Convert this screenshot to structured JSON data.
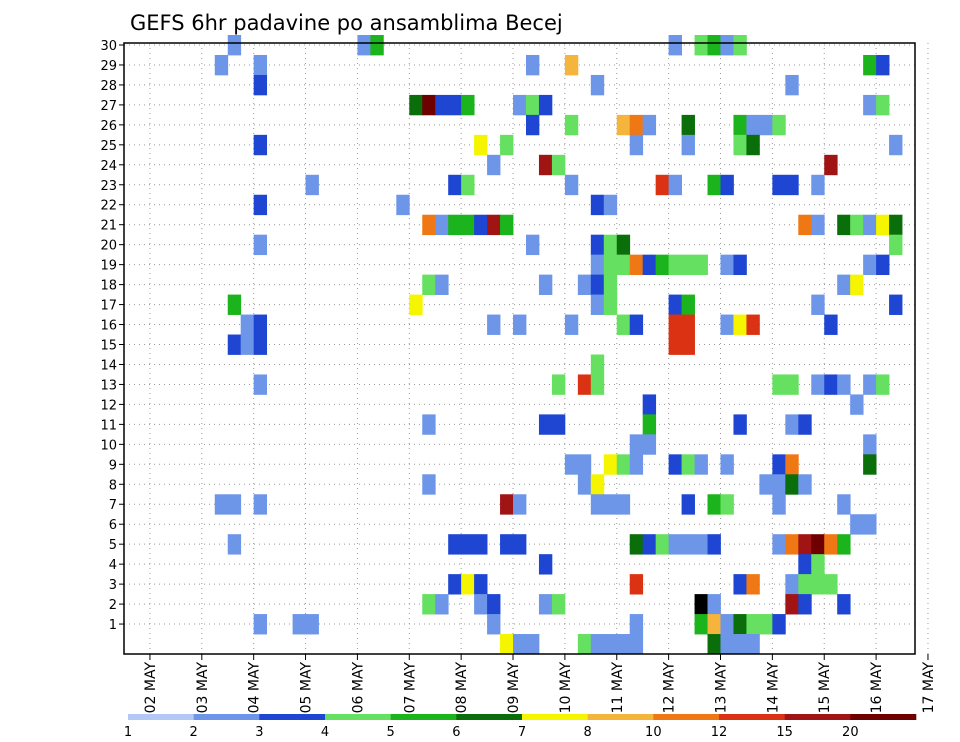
{
  "chart_data": {
    "type": "heatmap",
    "title": "GEFS 6hr padavine po ansamblima Becej",
    "y_ticks": [
      "1",
      "2",
      "3",
      "4",
      "5",
      "6",
      "7",
      "8",
      "9",
      "10",
      "11",
      "12",
      "13",
      "14",
      "15",
      "16",
      "17",
      "18",
      "19",
      "20",
      "21",
      "22",
      "23",
      "24",
      "25",
      "26",
      "27",
      "28",
      "29",
      "30"
    ],
    "y_range": [
      0,
      30
    ],
    "x_ticks": [
      "02 MAY",
      "03 MAY",
      "04 MAY",
      "05 MAY",
      "06 MAY",
      "07 MAY",
      "08 MAY",
      "09 MAY",
      "10 MAY",
      "11 MAY",
      "12 MAY",
      "13 MAY",
      "14 MAY",
      "15 MAY",
      "16 MAY",
      "17 MAY"
    ],
    "x_time_steps": 61,
    "step_hours": 6,
    "grid": true,
    "colorbar": {
      "placement": "bottom",
      "labels": [
        "1",
        "2",
        "3",
        "4",
        "5",
        "6",
        "7",
        "8",
        "10",
        "12",
        "15",
        "20"
      ],
      "colors": [
        "#b4c8f5",
        "#6e96e8",
        "#1e46d2",
        "#66e060",
        "#1cb41c",
        "#0a6e0a",
        "#f5f500",
        "#f5b43c",
        "#f07814",
        "#dc3214",
        "#a01414",
        "#6e0000"
      ]
    },
    "cells": [
      [
        8,
        30,
        1
      ],
      [
        18,
        30,
        1
      ],
      [
        19,
        30,
        4
      ],
      [
        42,
        30,
        1
      ],
      [
        44,
        30,
        3
      ],
      [
        45,
        30,
        4
      ],
      [
        46,
        30,
        1
      ],
      [
        47,
        30,
        3
      ],
      [
        7,
        29,
        1
      ],
      [
        10,
        29,
        1
      ],
      [
        31,
        29,
        1
      ],
      [
        34,
        29,
        7
      ],
      [
        57,
        29,
        4
      ],
      [
        58,
        29,
        2
      ],
      [
        10,
        28,
        2
      ],
      [
        36,
        28,
        1
      ],
      [
        51,
        28,
        1
      ],
      [
        22,
        27,
        5
      ],
      [
        23,
        27,
        11
      ],
      [
        24,
        27,
        2
      ],
      [
        25,
        27,
        2
      ],
      [
        26,
        27,
        4
      ],
      [
        30,
        27,
        1
      ],
      [
        31,
        27,
        3
      ],
      [
        32,
        27,
        2
      ],
      [
        57,
        27,
        1
      ],
      [
        58,
        27,
        3
      ],
      [
        31,
        26,
        2
      ],
      [
        34,
        26,
        3
      ],
      [
        38,
        26,
        7
      ],
      [
        39,
        26,
        8
      ],
      [
        40,
        26,
        1
      ],
      [
        43,
        26,
        5
      ],
      [
        47,
        26,
        4
      ],
      [
        48,
        26,
        1
      ],
      [
        49,
        26,
        1
      ],
      [
        50,
        26,
        3
      ],
      [
        10,
        25,
        2
      ],
      [
        27,
        25,
        6
      ],
      [
        29,
        25,
        3
      ],
      [
        39,
        25,
        1
      ],
      [
        43,
        25,
        1
      ],
      [
        47,
        25,
        3
      ],
      [
        48,
        25,
        5
      ],
      [
        59,
        25,
        1
      ],
      [
        28,
        24,
        1
      ],
      [
        32,
        24,
        10
      ],
      [
        33,
        24,
        3
      ],
      [
        54,
        24,
        10
      ],
      [
        14,
        23,
        1
      ],
      [
        25,
        23,
        2
      ],
      [
        26,
        23,
        3
      ],
      [
        34,
        23,
        1
      ],
      [
        41,
        23,
        9
      ],
      [
        42,
        23,
        1
      ],
      [
        45,
        23,
        4
      ],
      [
        46,
        23,
        2
      ],
      [
        50,
        23,
        2
      ],
      [
        51,
        23,
        2
      ],
      [
        53,
        23,
        1
      ],
      [
        10,
        22,
        2
      ],
      [
        21,
        22,
        1
      ],
      [
        36,
        22,
        2
      ],
      [
        37,
        22,
        1
      ],
      [
        23,
        21,
        8
      ],
      [
        24,
        21,
        1
      ],
      [
        25,
        21,
        4
      ],
      [
        26,
        21,
        4
      ],
      [
        27,
        21,
        2
      ],
      [
        28,
        21,
        10
      ],
      [
        29,
        21,
        4
      ],
      [
        52,
        21,
        8
      ],
      [
        53,
        21,
        1
      ],
      [
        55,
        21,
        5
      ],
      [
        56,
        21,
        3
      ],
      [
        57,
        21,
        1
      ],
      [
        58,
        21,
        6
      ],
      [
        59,
        21,
        5
      ],
      [
        10,
        20,
        1
      ],
      [
        31,
        20,
        1
      ],
      [
        36,
        20,
        2
      ],
      [
        37,
        20,
        3
      ],
      [
        38,
        20,
        5
      ],
      [
        59,
        20,
        3
      ],
      [
        36,
        19,
        1
      ],
      [
        37,
        19,
        3
      ],
      [
        38,
        19,
        3
      ],
      [
        39,
        19,
        8
      ],
      [
        40,
        19,
        2
      ],
      [
        41,
        19,
        4
      ],
      [
        42,
        19,
        3
      ],
      [
        43,
        19,
        3
      ],
      [
        44,
        19,
        3
      ],
      [
        46,
        19,
        1
      ],
      [
        47,
        19,
        2
      ],
      [
        57,
        19,
        1
      ],
      [
        58,
        19,
        2
      ],
      [
        23,
        18,
        3
      ],
      [
        24,
        18,
        1
      ],
      [
        32,
        18,
        1
      ],
      [
        35,
        18,
        1
      ],
      [
        36,
        18,
        2
      ],
      [
        37,
        18,
        3
      ],
      [
        55,
        18,
        1
      ],
      [
        56,
        18,
        6
      ],
      [
        8,
        17,
        4
      ],
      [
        22,
        17,
        6
      ],
      [
        36,
        17,
        1
      ],
      [
        37,
        17,
        3
      ],
      [
        42,
        17,
        2
      ],
      [
        43,
        17,
        4
      ],
      [
        53,
        17,
        1
      ],
      [
        59,
        17,
        2
      ],
      [
        9,
        16,
        1
      ],
      [
        10,
        16,
        2
      ],
      [
        28,
        16,
        1
      ],
      [
        30,
        16,
        1
      ],
      [
        34,
        16,
        1
      ],
      [
        38,
        16,
        3
      ],
      [
        39,
        16,
        2
      ],
      [
        42,
        16,
        9
      ],
      [
        43,
        16,
        9
      ],
      [
        46,
        16,
        1
      ],
      [
        47,
        16,
        6
      ],
      [
        48,
        16,
        9
      ],
      [
        54,
        16,
        2
      ],
      [
        8,
        15,
        2
      ],
      [
        9,
        15,
        1
      ],
      [
        10,
        15,
        2
      ],
      [
        42,
        15,
        9
      ],
      [
        43,
        15,
        9
      ],
      [
        36,
        14,
        3
      ],
      [
        10,
        13,
        1
      ],
      [
        33,
        13,
        3
      ],
      [
        35,
        13,
        9
      ],
      [
        36,
        13,
        3
      ],
      [
        50,
        13,
        3
      ],
      [
        51,
        13,
        3
      ],
      [
        53,
        13,
        1
      ],
      [
        54,
        13,
        2
      ],
      [
        55,
        13,
        1
      ],
      [
        57,
        13,
        1
      ],
      [
        58,
        13,
        3
      ],
      [
        40,
        12,
        2
      ],
      [
        56,
        12,
        1
      ],
      [
        23,
        11,
        1
      ],
      [
        32,
        11,
        2
      ],
      [
        33,
        11,
        2
      ],
      [
        40,
        11,
        4
      ],
      [
        47,
        11,
        2
      ],
      [
        51,
        11,
        1
      ],
      [
        52,
        11,
        2
      ],
      [
        39,
        10,
        1
      ],
      [
        40,
        10,
        1
      ],
      [
        57,
        10,
        1
      ],
      [
        34,
        9,
        1
      ],
      [
        35,
        9,
        1
      ],
      [
        37,
        9,
        6
      ],
      [
        38,
        9,
        3
      ],
      [
        39,
        9,
        1
      ],
      [
        42,
        9,
        2
      ],
      [
        43,
        9,
        3
      ],
      [
        44,
        9,
        1
      ],
      [
        46,
        9,
        1
      ],
      [
        50,
        9,
        2
      ],
      [
        51,
        9,
        8
      ],
      [
        57,
        9,
        5
      ],
      [
        23,
        8,
        1
      ],
      [
        35,
        8,
        1
      ],
      [
        36,
        8,
        6
      ],
      [
        49,
        8,
        1
      ],
      [
        50,
        8,
        1
      ],
      [
        51,
        8,
        5
      ],
      [
        52,
        8,
        1
      ],
      [
        7,
        7,
        1
      ],
      [
        8,
        7,
        1
      ],
      [
        10,
        7,
        1
      ],
      [
        29,
        7,
        10
      ],
      [
        30,
        7,
        1
      ],
      [
        36,
        7,
        1
      ],
      [
        37,
        7,
        1
      ],
      [
        38,
        7,
        1
      ],
      [
        43,
        7,
        2
      ],
      [
        45,
        7,
        4
      ],
      [
        46,
        7,
        3
      ],
      [
        50,
        7,
        1
      ],
      [
        55,
        7,
        1
      ],
      [
        56,
        6,
        1
      ],
      [
        57,
        6,
        1
      ],
      [
        8,
        5,
        1
      ],
      [
        25,
        5,
        2
      ],
      [
        26,
        5,
        2
      ],
      [
        27,
        5,
        2
      ],
      [
        29,
        5,
        2
      ],
      [
        30,
        5,
        2
      ],
      [
        39,
        5,
        5
      ],
      [
        40,
        5,
        2
      ],
      [
        41,
        5,
        3
      ],
      [
        42,
        5,
        1
      ],
      [
        43,
        5,
        1
      ],
      [
        44,
        5,
        1
      ],
      [
        45,
        5,
        2
      ],
      [
        50,
        5,
        1
      ],
      [
        51,
        5,
        8
      ],
      [
        52,
        5,
        10
      ],
      [
        53,
        5,
        11
      ],
      [
        54,
        5,
        8
      ],
      [
        55,
        5,
        4
      ],
      [
        32,
        4,
        2
      ],
      [
        52,
        4,
        2
      ],
      [
        53,
        4,
        3
      ],
      [
        25,
        3,
        2
      ],
      [
        26,
        3,
        6
      ],
      [
        27,
        3,
        2
      ],
      [
        39,
        3,
        9
      ],
      [
        47,
        3,
        2
      ],
      [
        48,
        3,
        8
      ],
      [
        51,
        3,
        1
      ],
      [
        52,
        3,
        3
      ],
      [
        53,
        3,
        3
      ],
      [
        54,
        3,
        3
      ],
      [
        23,
        2,
        3
      ],
      [
        24,
        2,
        1
      ],
      [
        27,
        2,
        1
      ],
      [
        28,
        2,
        2
      ],
      [
        32,
        2,
        1
      ],
      [
        33,
        2,
        3
      ],
      [
        44,
        2,
        12
      ],
      [
        45,
        2,
        1
      ],
      [
        51,
        2,
        10
      ],
      [
        52,
        2,
        2
      ],
      [
        55,
        2,
        2
      ],
      [
        10,
        1,
        1
      ],
      [
        13,
        1,
        1
      ],
      [
        14,
        1,
        1
      ],
      [
        28,
        1,
        1
      ],
      [
        39,
        1,
        1
      ],
      [
        44,
        1,
        4
      ],
      [
        45,
        1,
        7
      ],
      [
        46,
        1,
        1
      ],
      [
        47,
        1,
        5
      ],
      [
        48,
        1,
        3
      ],
      [
        49,
        1,
        3
      ],
      [
        50,
        1,
        2
      ],
      [
        29,
        0,
        6
      ],
      [
        30,
        0,
        1
      ],
      [
        31,
        0,
        1
      ],
      [
        35,
        0,
        3
      ],
      [
        36,
        0,
        1
      ],
      [
        37,
        0,
        1
      ],
      [
        38,
        0,
        1
      ],
      [
        39,
        0,
        1
      ],
      [
        45,
        0,
        5
      ],
      [
        46,
        0,
        1
      ],
      [
        47,
        0,
        1
      ],
      [
        48,
        0,
        1
      ]
    ]
  }
}
